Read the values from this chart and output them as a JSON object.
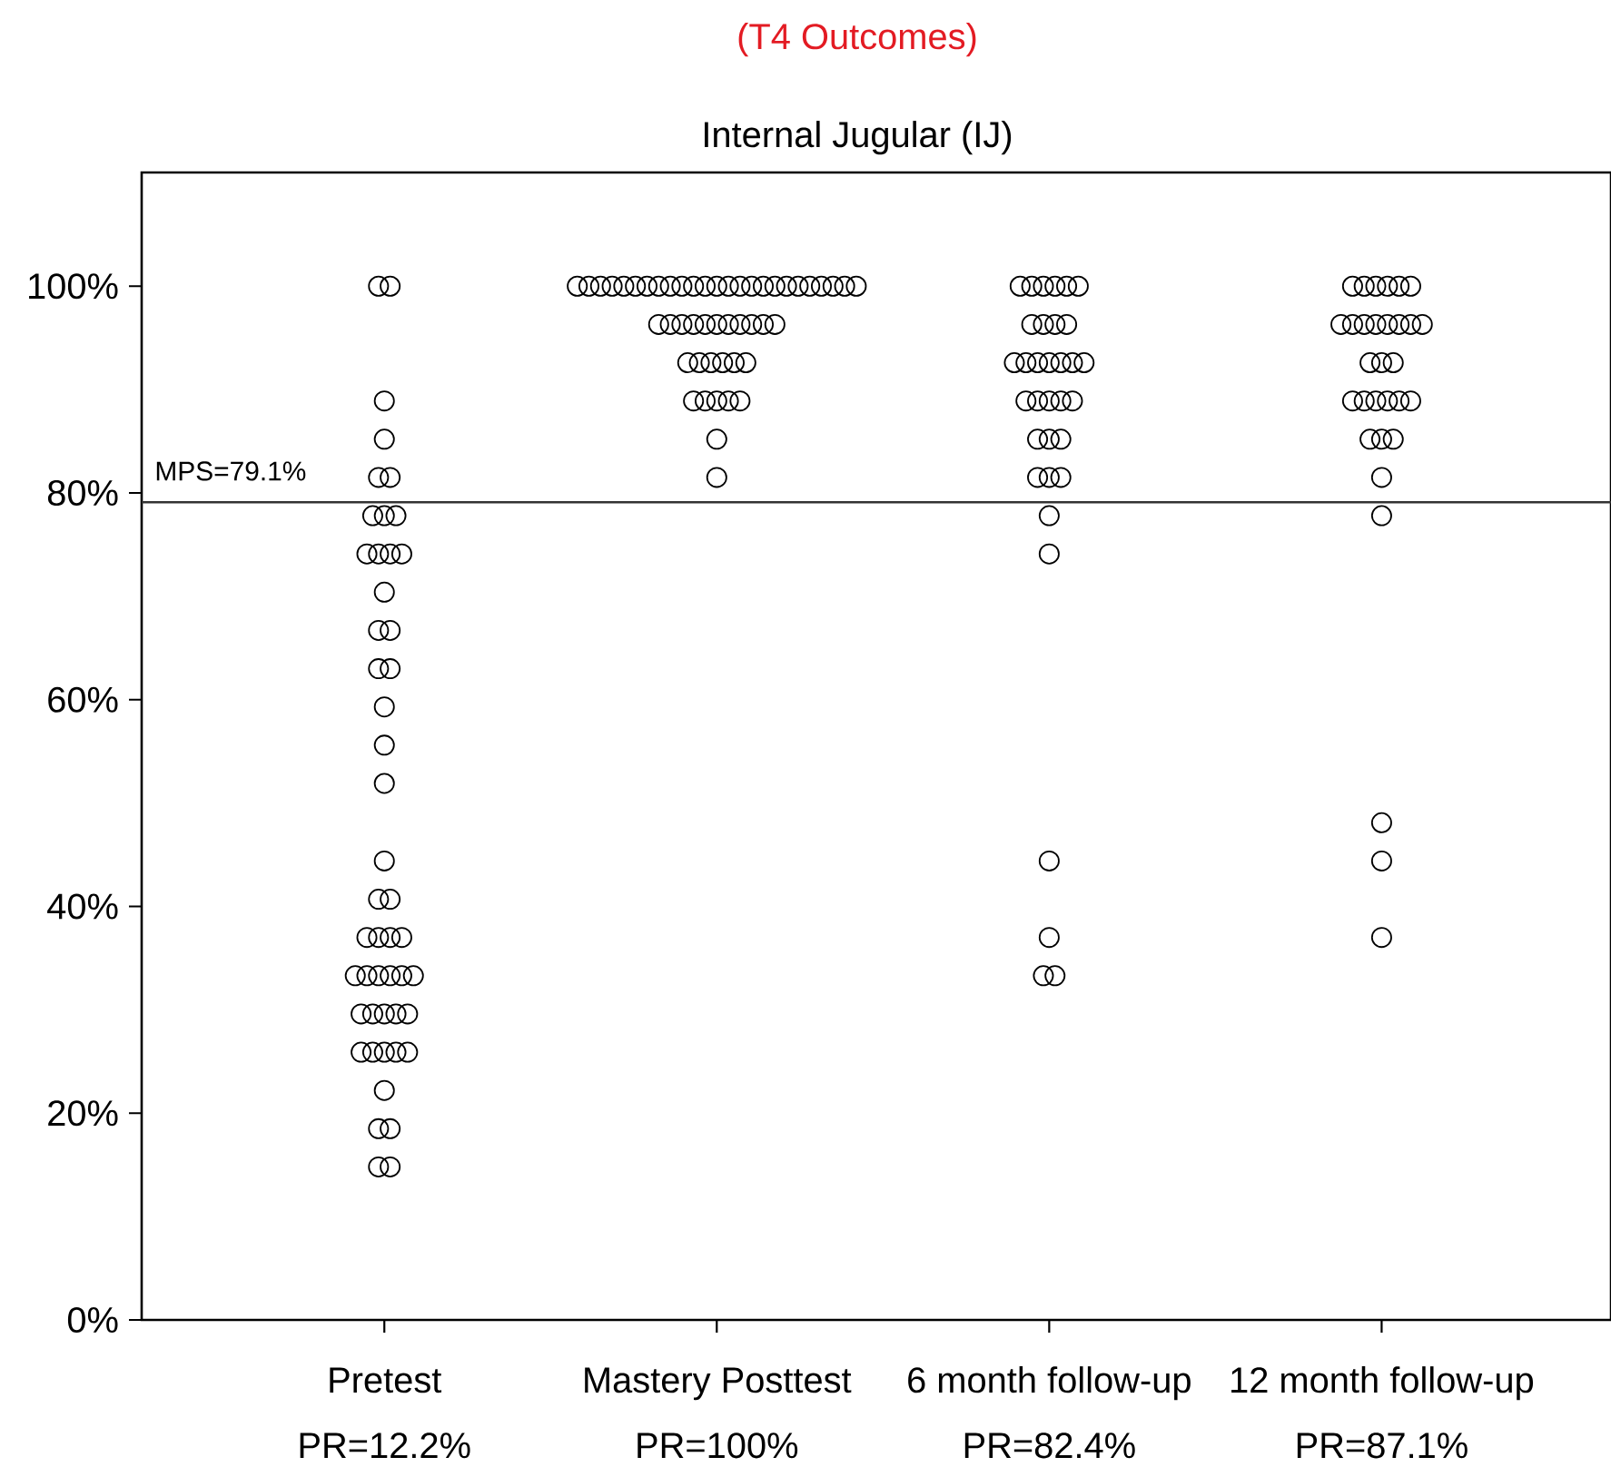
{
  "chart_data": {
    "type": "scatter",
    "title": "(T4 Outcomes)",
    "subtitle": "Internal Jugular (IJ)",
    "categories": [
      "Pretest",
      "Mastery Posttest",
      "6 month follow-up",
      "12 month follow-up"
    ],
    "marker": "circle",
    "ylim": [
      0,
      111
    ],
    "yticks": [
      {
        "value": 0,
        "label": "0%"
      },
      {
        "value": 20,
        "label": "20%"
      },
      {
        "value": 40,
        "label": "40%"
      },
      {
        "value": 60,
        "label": "60%"
      },
      {
        "value": 80,
        "label": "80%"
      },
      {
        "value": 100,
        "label": "100%"
      }
    ],
    "ref_lines": [
      {
        "axis": "y",
        "value": 79.1,
        "label": "MPS=79.1%",
        "color": "#333333"
      }
    ],
    "annotations": [
      "PR=12.2%",
      "PR=100%",
      "PR=82.4%",
      "PR=87.1%"
    ],
    "series": [
      {
        "color": "#000000",
        "x": [
          "Pretest",
          "Pretest",
          "Pretest",
          "Pretest",
          "Pretest",
          "Pretest",
          "Pretest",
          "Pretest",
          "Pretest",
          "Pretest",
          "Pretest",
          "Pretest",
          "Pretest",
          "Pretest",
          "Pretest",
          "Pretest",
          "Pretest",
          "Pretest",
          "Pretest",
          "Pretest",
          "Pretest",
          "Pretest",
          "Pretest",
          "Pretest",
          "Pretest",
          "Pretest",
          "Pretest",
          "Pretest",
          "Pretest",
          "Pretest",
          "Pretest",
          "Pretest",
          "Pretest",
          "Pretest",
          "Pretest",
          "Pretest",
          "Pretest",
          "Pretest",
          "Pretest",
          "Pretest",
          "Pretest",
          "Pretest",
          "Pretest",
          "Pretest",
          "Pretest",
          "Pretest",
          "Pretest",
          "Pretest",
          "Pretest"
        ],
        "values": [
          100,
          100,
          88.9,
          85.2,
          81.5,
          81.5,
          77.8,
          77.8,
          77.8,
          74.1,
          74.1,
          74.1,
          74.1,
          70.4,
          66.7,
          66.7,
          63,
          63,
          59.3,
          55.6,
          51.9,
          44.4,
          40.7,
          40.7,
          37,
          37,
          37,
          37,
          33.3,
          33.3,
          33.3,
          33.3,
          33.3,
          33.3,
          29.6,
          29.6,
          29.6,
          29.6,
          29.6,
          25.9,
          25.9,
          25.9,
          25.9,
          25.9,
          22.2,
          18.5,
          18.5,
          14.8,
          14.8
        ]
      },
      {
        "color": "#000000",
        "x": [
          "Mastery Posttest",
          "Mastery Posttest",
          "Mastery Posttest",
          "Mastery Posttest",
          "Mastery Posttest",
          "Mastery Posttest",
          "Mastery Posttest",
          "Mastery Posttest",
          "Mastery Posttest",
          "Mastery Posttest",
          "Mastery Posttest",
          "Mastery Posttest",
          "Mastery Posttest",
          "Mastery Posttest",
          "Mastery Posttest",
          "Mastery Posttest",
          "Mastery Posttest",
          "Mastery Posttest",
          "Mastery Posttest",
          "Mastery Posttest",
          "Mastery Posttest",
          "Mastery Posttest",
          "Mastery Posttest",
          "Mastery Posttest",
          "Mastery Posttest",
          "Mastery Posttest",
          "Mastery Posttest",
          "Mastery Posttest",
          "Mastery Posttest",
          "Mastery Posttest",
          "Mastery Posttest",
          "Mastery Posttest",
          "Mastery Posttest",
          "Mastery Posttest",
          "Mastery Posttest",
          "Mastery Posttest",
          "Mastery Posttest",
          "Mastery Posttest",
          "Mastery Posttest",
          "Mastery Posttest",
          "Mastery Posttest",
          "Mastery Posttest",
          "Mastery Posttest",
          "Mastery Posttest",
          "Mastery Posttest",
          "Mastery Posttest",
          "Mastery Posttest",
          "Mastery Posttest",
          "Mastery Posttest"
        ],
        "values": [
          100,
          100,
          100,
          100,
          100,
          100,
          100,
          100,
          100,
          100,
          100,
          100,
          100,
          100,
          100,
          100,
          100,
          100,
          100,
          100,
          100,
          100,
          100,
          100,
          100,
          96.3,
          96.3,
          96.3,
          96.3,
          96.3,
          96.3,
          96.3,
          96.3,
          96.3,
          96.3,
          96.3,
          92.6,
          92.6,
          92.6,
          92.6,
          92.6,
          92.6,
          88.9,
          88.9,
          88.9,
          88.9,
          88.9,
          85.2,
          81.5
        ]
      },
      {
        "color": "#000000",
        "x": [
          "6 month follow-up",
          "6 month follow-up",
          "6 month follow-up",
          "6 month follow-up",
          "6 month follow-up",
          "6 month follow-up",
          "6 month follow-up",
          "6 month follow-up",
          "6 month follow-up",
          "6 month follow-up",
          "6 month follow-up",
          "6 month follow-up",
          "6 month follow-up",
          "6 month follow-up",
          "6 month follow-up",
          "6 month follow-up",
          "6 month follow-up",
          "6 month follow-up",
          "6 month follow-up",
          "6 month follow-up",
          "6 month follow-up",
          "6 month follow-up",
          "6 month follow-up",
          "6 month follow-up",
          "6 month follow-up",
          "6 month follow-up",
          "6 month follow-up",
          "6 month follow-up",
          "6 month follow-up",
          "6 month follow-up",
          "6 month follow-up",
          "6 month follow-up",
          "6 month follow-up",
          "6 month follow-up"
        ],
        "values": [
          100,
          100,
          100,
          100,
          100,
          100,
          96.3,
          96.3,
          96.3,
          96.3,
          92.6,
          92.6,
          92.6,
          92.6,
          92.6,
          92.6,
          92.6,
          88.9,
          88.9,
          88.9,
          88.9,
          88.9,
          85.2,
          85.2,
          85.2,
          81.5,
          81.5,
          81.5,
          77.8,
          74.1,
          44.4,
          37,
          33.3,
          33.3
        ]
      },
      {
        "color": "#000000",
        "x": [
          "12 month follow-up",
          "12 month follow-up",
          "12 month follow-up",
          "12 month follow-up",
          "12 month follow-up",
          "12 month follow-up",
          "12 month follow-up",
          "12 month follow-up",
          "12 month follow-up",
          "12 month follow-up",
          "12 month follow-up",
          "12 month follow-up",
          "12 month follow-up",
          "12 month follow-up",
          "12 month follow-up",
          "12 month follow-up",
          "12 month follow-up",
          "12 month follow-up",
          "12 month follow-up",
          "12 month follow-up",
          "12 month follow-up",
          "12 month follow-up",
          "12 month follow-up",
          "12 month follow-up",
          "12 month follow-up",
          "12 month follow-up",
          "12 month follow-up",
          "12 month follow-up",
          "12 month follow-up",
          "12 month follow-up",
          "12 month follow-up"
        ],
        "values": [
          100,
          100,
          100,
          100,
          100,
          100,
          96.3,
          96.3,
          96.3,
          96.3,
          96.3,
          96.3,
          96.3,
          96.3,
          92.6,
          92.6,
          92.6,
          88.9,
          88.9,
          88.9,
          88.9,
          88.9,
          88.9,
          85.2,
          85.2,
          85.2,
          81.5,
          77.8,
          48.1,
          44.4,
          37
        ]
      }
    ]
  }
}
